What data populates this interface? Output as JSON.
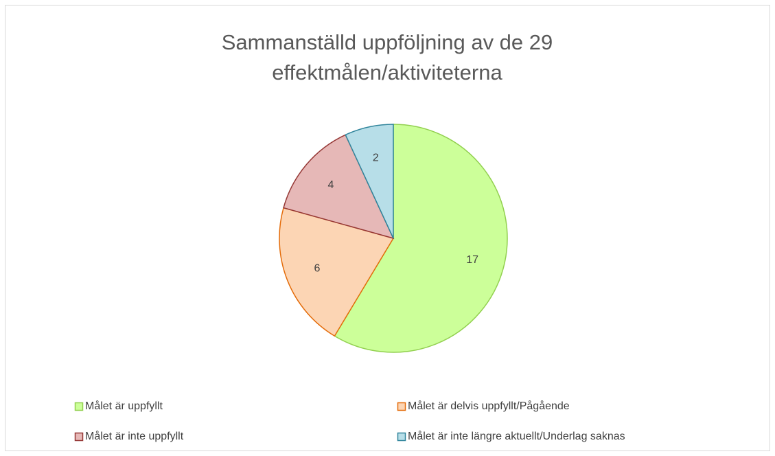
{
  "chart_data": {
    "type": "pie",
    "title": "Sammanställd uppföljning av de 29 effektmålen/aktiviteterna",
    "categories": [
      "Målet är uppfyllt",
      "Målet är delvis uppfyllt/Pågående",
      "Målet är inte uppfyllt",
      "Målet är inte längre aktuellt/Underlag saknas"
    ],
    "values": [
      17,
      6,
      4,
      2
    ],
    "colors": [
      "#ccff99",
      "#fcd5b4",
      "#e6b8b7",
      "#b7dee8"
    ],
    "edge_colors": [
      "#92d050",
      "#e46c0a",
      "#953735",
      "#31859c"
    ],
    "legend": "bottom"
  }
}
